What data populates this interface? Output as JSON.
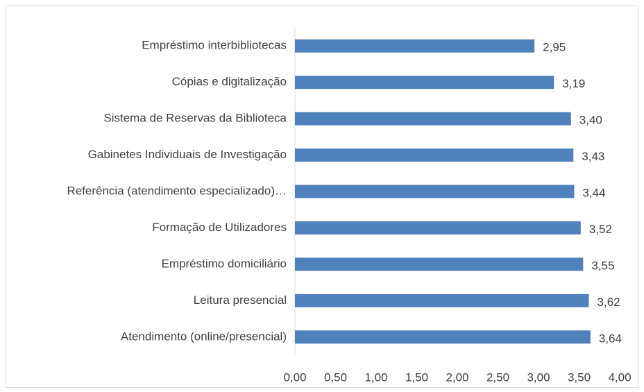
{
  "chart_data": {
    "type": "hbar",
    "categories": [
      "Empréstimo interbibliotecas",
      "Cópias e digitalização",
      "Sistema de Reservas da Biblioteca",
      "Gabinetes Individuais de Investigação",
      "Referência (atendimento especializado)…",
      "Formação de Utilizadores",
      "Empréstimo domiciliário",
      "Leitura presencial",
      "Atendimento (online/presencial)"
    ],
    "values": [
      2.95,
      3.19,
      3.4,
      3.43,
      3.44,
      3.52,
      3.55,
      3.62,
      3.64
    ],
    "value_labels": [
      "2,95",
      "3,19",
      "3,40",
      "3,43",
      "3,44",
      "3,52",
      "3,55",
      "3,62",
      "3,64"
    ],
    "color": "#4f81bd",
    "xlim": [
      0,
      4
    ],
    "xticks": [
      {
        "value": 0,
        "label": "0,00"
      },
      {
        "value": 0.5,
        "label": "0,50"
      },
      {
        "value": 1,
        "label": "1,00"
      },
      {
        "value": 1.5,
        "label": "1,50"
      },
      {
        "value": 2,
        "label": "2,00"
      },
      {
        "value": 2.5,
        "label": "2,50"
      },
      {
        "value": 3,
        "label": "3,00"
      },
      {
        "value": 3.5,
        "label": "3,50"
      },
      {
        "value": 4,
        "label": "4,00"
      }
    ],
    "grid": false
  }
}
